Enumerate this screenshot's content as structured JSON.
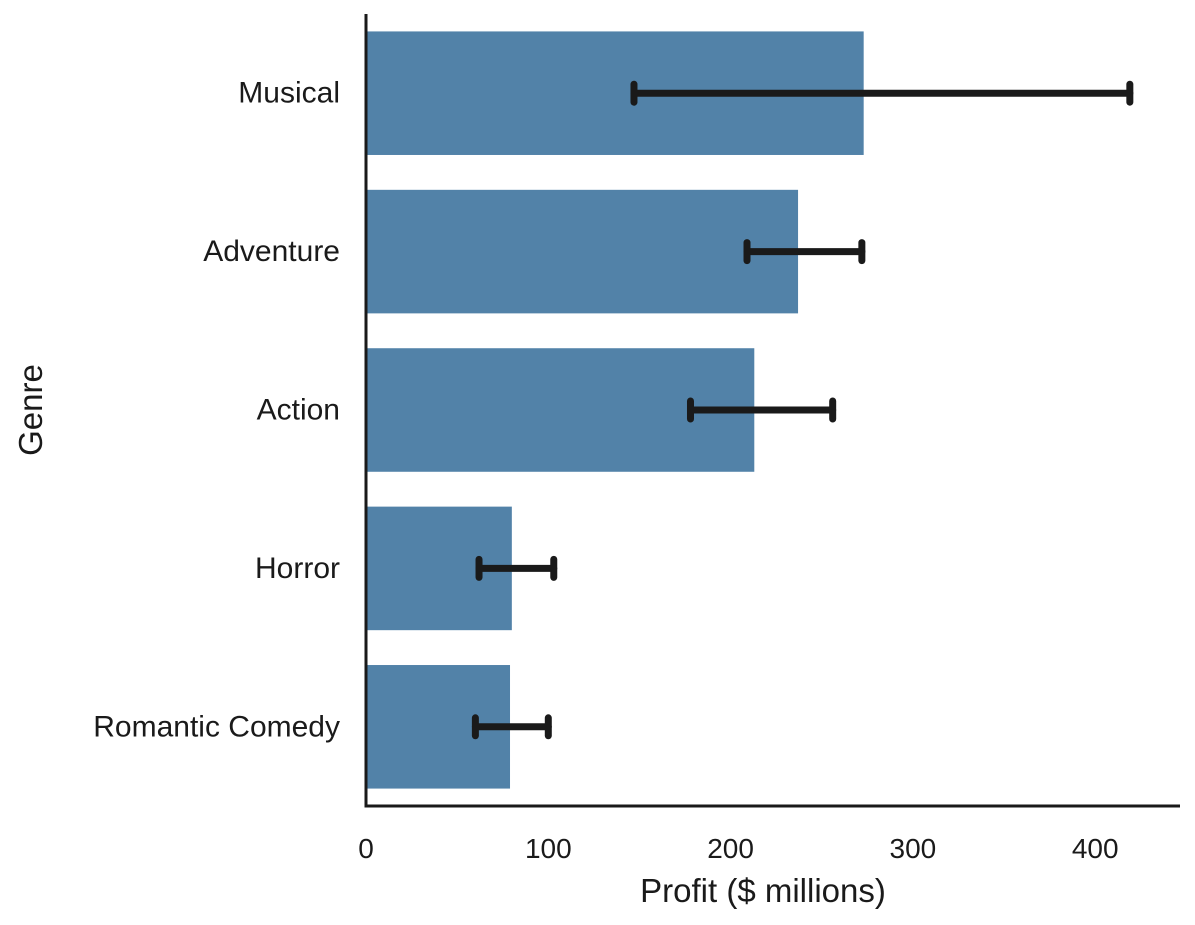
{
  "chart_data": {
    "type": "bar",
    "orientation": "horizontal",
    "title": "",
    "xlabel": "Profit ($ millions)",
    "ylabel": "Genre",
    "categories": [
      "Musical",
      "Adventure",
      "Action",
      "Horror",
      "Romantic Comedy"
    ],
    "values": [
      273,
      237,
      213,
      80,
      79
    ],
    "error_low": [
      147,
      209,
      178,
      62,
      60
    ],
    "error_high": [
      419,
      272,
      256,
      103,
      100
    ],
    "xlim": [
      0,
      440
    ],
    "xticks": [
      0,
      100,
      200,
      300,
      400
    ],
    "grid": false,
    "legend": "none",
    "colors": {
      "bar": "#5282a8",
      "error_bar": "#1a1a1a",
      "axis": "#1a1a1a"
    }
  }
}
